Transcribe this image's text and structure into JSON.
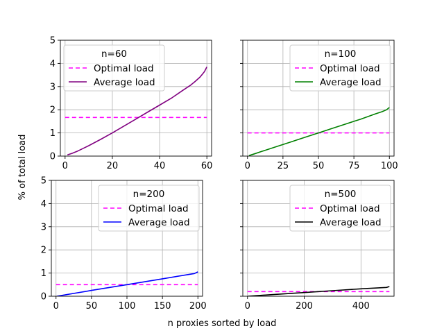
{
  "figure": {
    "xlabel": "n proxies sorted by load",
    "ylabel": "% of total load"
  },
  "chart_data": [
    {
      "type": "line",
      "legend_title": "n=60",
      "legend_position": "upper-left",
      "xlim": [
        -2,
        62
      ],
      "ylim": [
        0,
        5
      ],
      "xticks": [
        0,
        20,
        40,
        60
      ],
      "yticks": [
        0,
        1,
        2,
        3,
        4,
        5
      ],
      "grid": true,
      "series": [
        {
          "name": "Optimal load",
          "style": "dashed",
          "color": "#ff00ff",
          "x": [
            0,
            60
          ],
          "y": [
            1.667,
            1.667
          ]
        },
        {
          "name": "Average load",
          "style": "solid",
          "color": "#800080",
          "x": [
            1,
            3,
            5,
            8,
            10,
            15,
            20,
            25,
            30,
            35,
            40,
            45,
            50,
            53,
            55,
            57,
            58,
            59,
            60
          ],
          "y": [
            0.05,
            0.12,
            0.2,
            0.35,
            0.45,
            0.72,
            1.0,
            1.3,
            1.6,
            1.9,
            2.2,
            2.5,
            2.85,
            3.05,
            3.22,
            3.4,
            3.52,
            3.65,
            3.85
          ]
        }
      ]
    },
    {
      "type": "line",
      "legend_title": "n=100",
      "legend_position": "upper-right",
      "xlim": [
        -3.3,
        103.3
      ],
      "ylim": [
        0,
        5
      ],
      "xticks": [
        0,
        25,
        50,
        75,
        100
      ],
      "yticks": [
        0,
        1,
        2,
        3,
        4,
        5
      ],
      "grid": true,
      "series": [
        {
          "name": "Optimal load",
          "style": "dashed",
          "color": "#ff00ff",
          "x": [
            0,
            100
          ],
          "y": [
            1.0,
            1.0
          ]
        },
        {
          "name": "Average load",
          "style": "solid",
          "color": "#008000",
          "x": [
            1,
            5,
            10,
            20,
            30,
            40,
            50,
            60,
            70,
            80,
            90,
            95,
            98,
            100
          ],
          "y": [
            0.02,
            0.1,
            0.2,
            0.4,
            0.6,
            0.8,
            1.0,
            1.2,
            1.4,
            1.6,
            1.82,
            1.92,
            2.0,
            2.1
          ]
        }
      ]
    },
    {
      "type": "line",
      "legend_title": "n=200",
      "legend_position": "upper-right",
      "xlim": [
        -6.6,
        206.6
      ],
      "ylim": [
        0,
        5
      ],
      "xticks": [
        0,
        50,
        100,
        150,
        200
      ],
      "yticks": [
        0,
        1,
        2,
        3,
        4,
        5
      ],
      "grid": true,
      "series": [
        {
          "name": "Optimal load",
          "style": "dashed",
          "color": "#ff00ff",
          "x": [
            0,
            200
          ],
          "y": [
            0.5,
            0.5
          ]
        },
        {
          "name": "Average load",
          "style": "solid",
          "color": "#0000ff",
          "x": [
            1,
            50,
            100,
            150,
            195,
            200
          ],
          "y": [
            0.0,
            0.25,
            0.5,
            0.75,
            0.98,
            1.05
          ]
        }
      ]
    },
    {
      "type": "line",
      "legend_title": "n=500",
      "legend_position": "upper-right",
      "xlim": [
        -16.5,
        516.5
      ],
      "ylim": [
        0,
        5
      ],
      "xticks": [
        0,
        200,
        400
      ],
      "yticks": [
        0,
        1,
        2,
        3,
        4,
        5
      ],
      "grid": true,
      "series": [
        {
          "name": "Optimal load",
          "style": "dashed",
          "color": "#ff00ff",
          "x": [
            0,
            500
          ],
          "y": [
            0.2,
            0.2
          ]
        },
        {
          "name": "Average load",
          "style": "solid",
          "color": "#000000",
          "x": [
            1,
            100,
            200,
            300,
            400,
            490,
            500
          ],
          "y": [
            0.0,
            0.08,
            0.16,
            0.24,
            0.32,
            0.38,
            0.42
          ]
        }
      ]
    }
  ]
}
